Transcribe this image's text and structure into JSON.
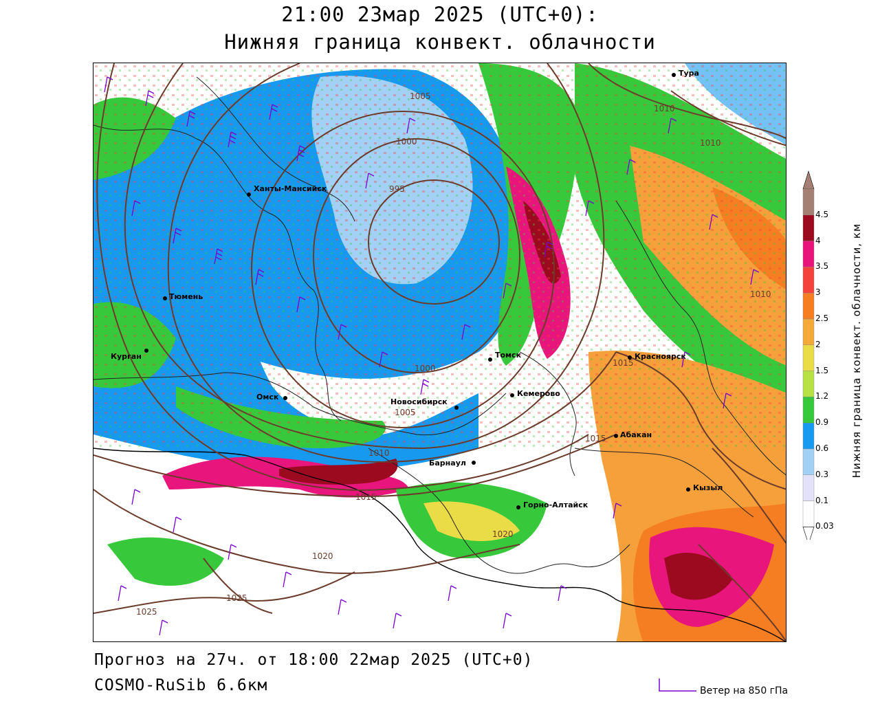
{
  "header": {
    "title": "21:00 23мар 2025 (UTC+0):",
    "subtitle": "Нижняя граница конвект. облачности"
  },
  "footer": {
    "forecast": "Прогноз на 27ч. от 18:00 22мар 2025 (UTC+0)",
    "model": "COSMO-RuSib 6.6км",
    "wind_legend": "Ветер на 850 гПа"
  },
  "colorbar": {
    "title": "Нижняя граница конвект. облачности, км",
    "ticks": [
      "4.5",
      "4",
      "3.5",
      "3",
      "2.5",
      "2",
      "1.5",
      "1.2",
      "0.9",
      "0.6",
      "0.3",
      "0.1",
      "0.03"
    ],
    "colors": [
      "#a67f74",
      "#9b0a1e",
      "#e8157c",
      "#f4433c",
      "#f57d22",
      "#f4a93b",
      "#e9dc47",
      "#b6e043",
      "#37c93b",
      "#1799ef",
      "#a3d1f5",
      "#e2e1f7",
      "#ffffff"
    ]
  },
  "map": {
    "cities": [
      {
        "name": "Тура"
      },
      {
        "name": "Ханты-Мансийск"
      },
      {
        "name": "Тюмень"
      },
      {
        "name": "Курган"
      },
      {
        "name": "Томск"
      },
      {
        "name": "Красноярск"
      },
      {
        "name": "Омск"
      },
      {
        "name": "Новосибирск"
      },
      {
        "name": "Кемерово"
      },
      {
        "name": "Абакан"
      },
      {
        "name": "Барнаул"
      },
      {
        "name": "Горно-Алтайск"
      },
      {
        "name": "Кызыл"
      }
    ],
    "isobars": [
      "995",
      "1000",
      "1000",
      "1005",
      "1005",
      "1010",
      "1010",
      "1010",
      "1010",
      "1015",
      "1015",
      "1015",
      "1020",
      "1020",
      "1025",
      "1025"
    ]
  }
}
